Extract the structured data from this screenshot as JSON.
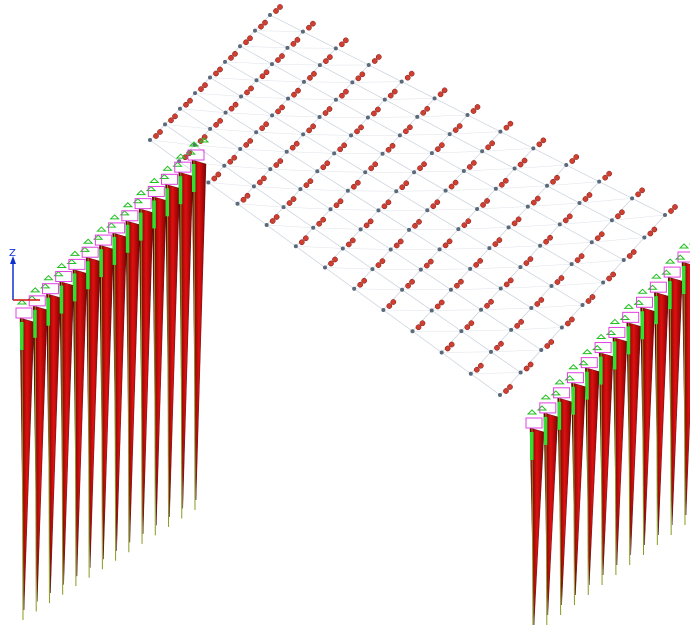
{
  "axis_labels": {
    "z": "Z"
  }
}
